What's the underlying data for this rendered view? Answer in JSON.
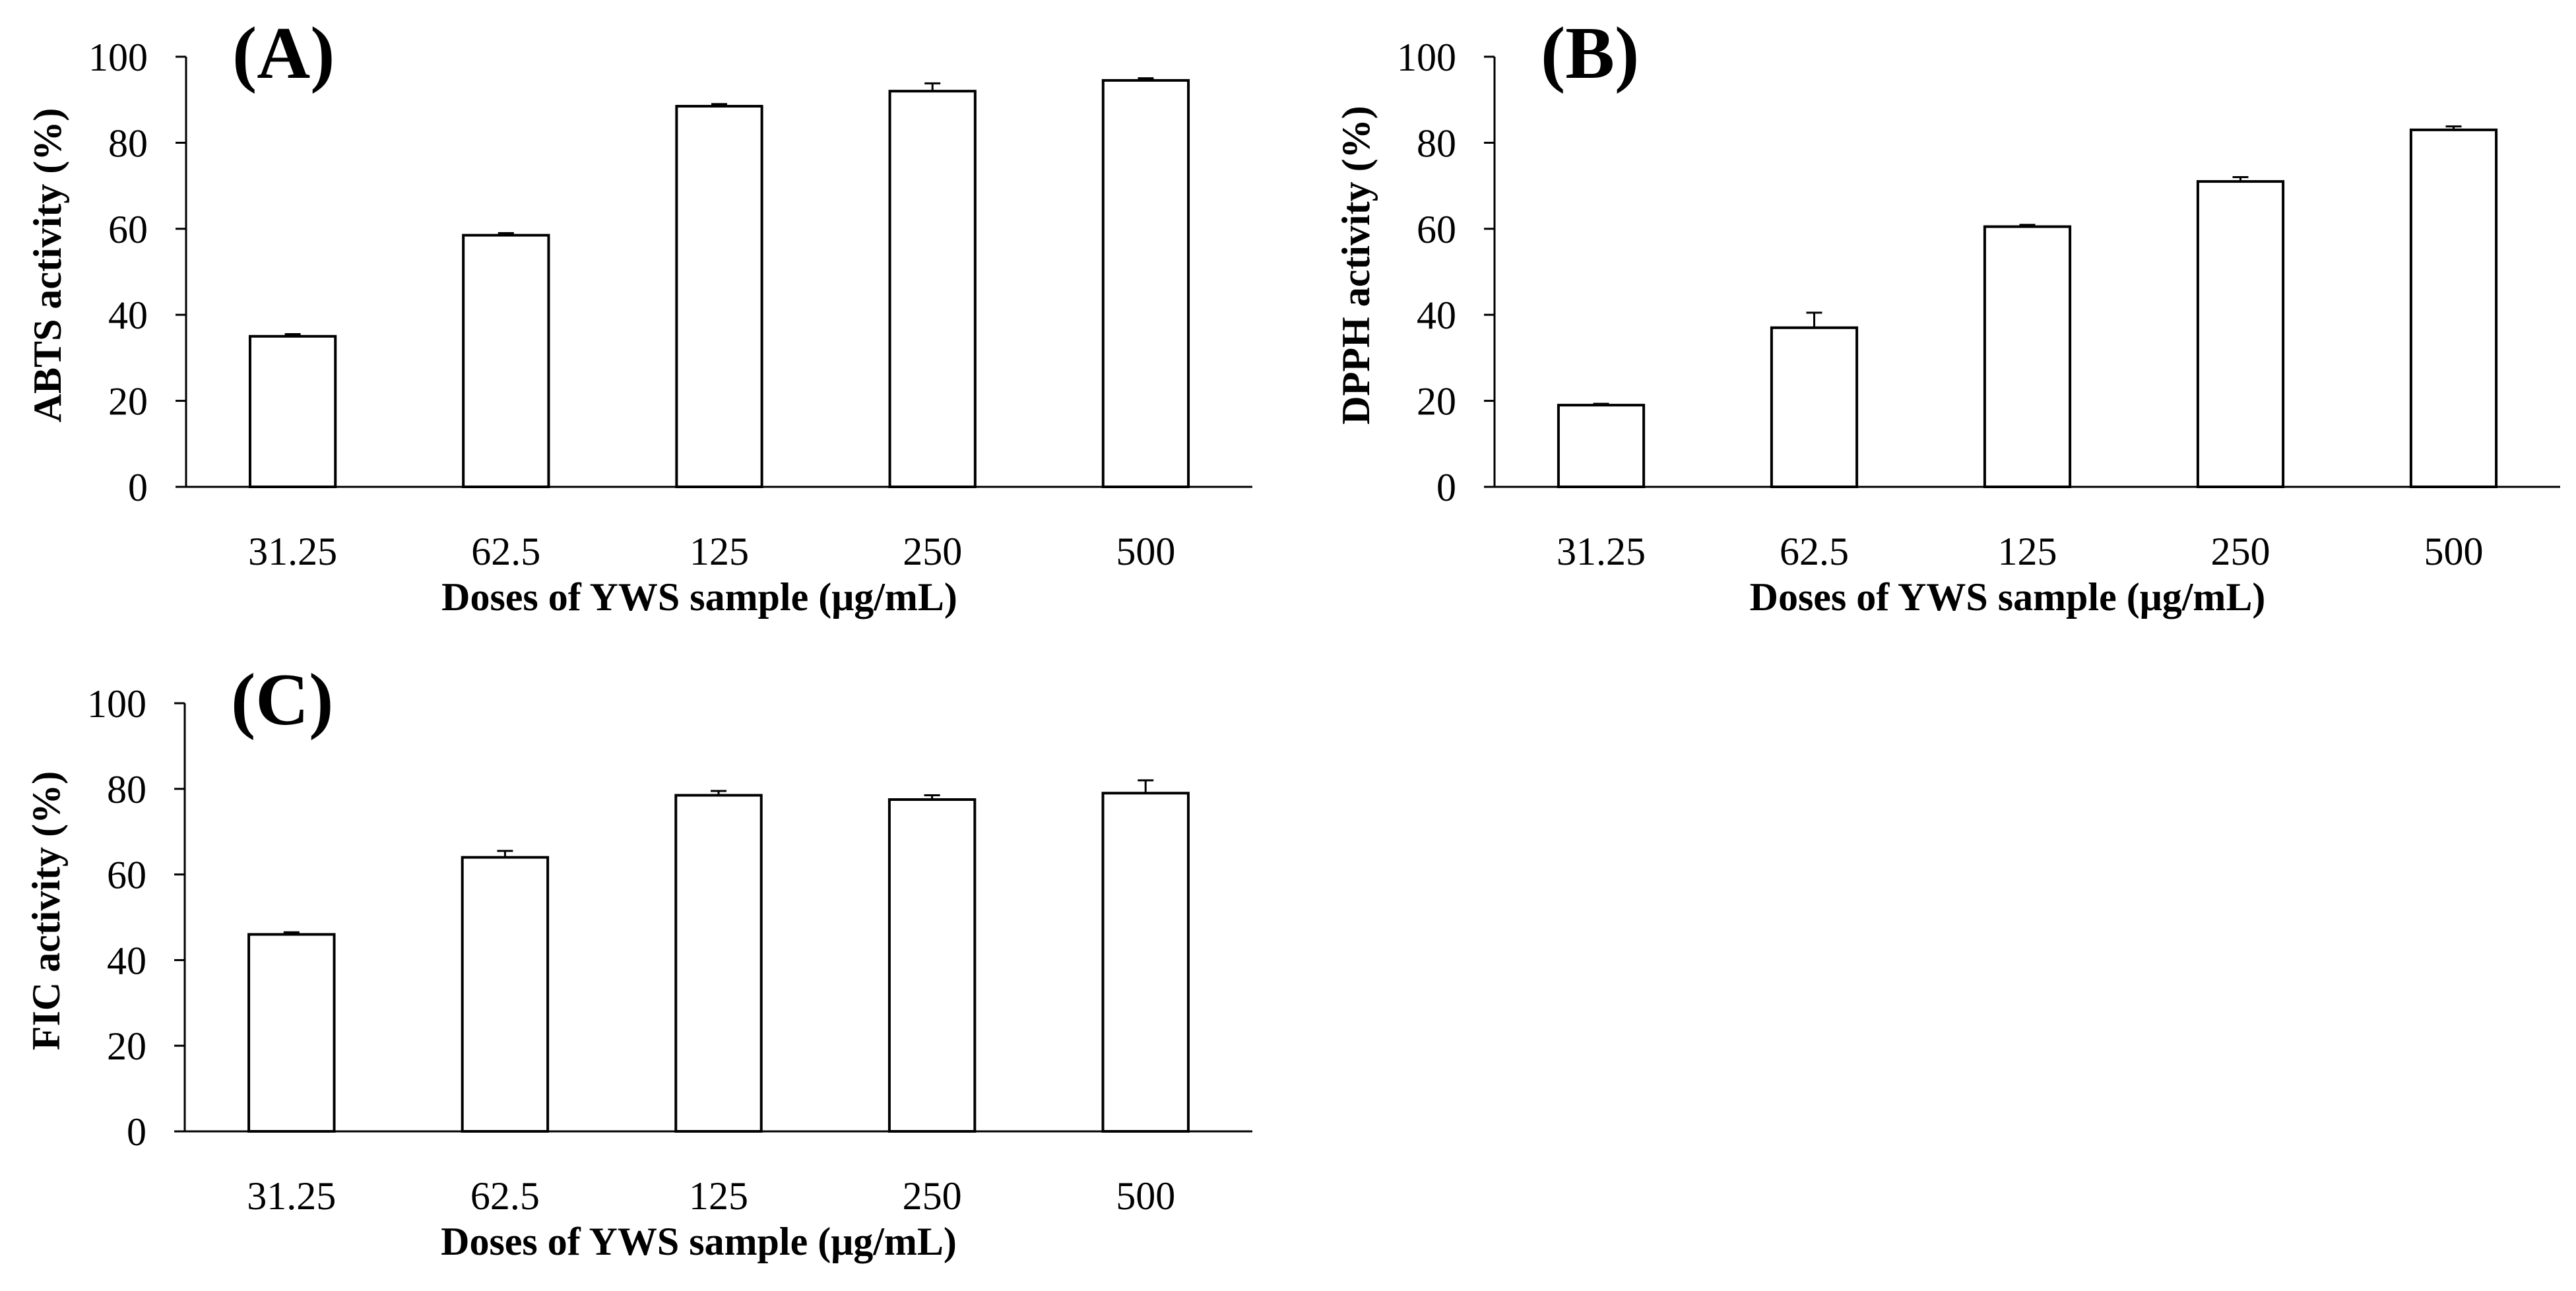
{
  "figure": {
    "background": "#ffffff",
    "bar_fill": "#ffffff",
    "bar_stroke": "#000000"
  },
  "chart_data": [
    {
      "type": "bar",
      "panel_label": "(A)",
      "categories": [
        "31.25",
        "62.5",
        "125",
        "250",
        "500"
      ],
      "values": [
        35,
        58.5,
        88.5,
        92,
        94.5
      ],
      "errors": [
        0.5,
        0.5,
        0.5,
        1.8,
        0.5
      ],
      "xlabel": "Doses of YWS sample (μg/mL)",
      "ylabel": "ABTS activity (%)",
      "ylim": [
        0,
        100
      ],
      "yticks": [
        "0",
        "20",
        "40",
        "60",
        "80",
        "100"
      ],
      "grid": false
    },
    {
      "type": "bar",
      "panel_label": "(B)",
      "categories": [
        "31.25",
        "62.5",
        "125",
        "250",
        "500"
      ],
      "values": [
        19,
        37,
        60.5,
        71,
        83
      ],
      "errors": [
        0.3,
        3.5,
        0.4,
        1.0,
        0.8
      ],
      "xlabel": "Doses of YWS sample (μg/mL)",
      "ylabel": "DPPH activity (%)",
      "ylim": [
        0,
        100
      ],
      "yticks": [
        "0",
        "20",
        "40",
        "60",
        "80",
        "100"
      ],
      "grid": false
    },
    {
      "type": "bar",
      "panel_label": "(C)",
      "categories": [
        "31.25",
        "62.5",
        "125",
        "250",
        "500"
      ],
      "values": [
        46,
        64,
        78.5,
        77.5,
        79
      ],
      "errors": [
        0.5,
        1.5,
        1.0,
        1.0,
        3.0
      ],
      "xlabel": "Doses of YWS sample (μg/mL)",
      "ylabel": "FIC activity (%)",
      "ylim": [
        0,
        100
      ],
      "yticks": [
        "0",
        "20",
        "40",
        "60",
        "80",
        "100"
      ],
      "grid": false
    }
  ]
}
